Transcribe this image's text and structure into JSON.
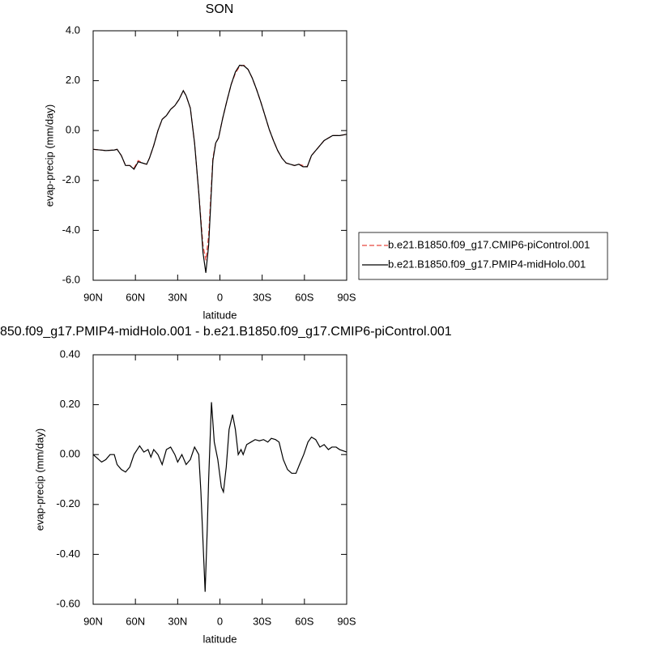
{
  "chart_data": [
    {
      "type": "line",
      "title": "SON",
      "xlabel": "latitude",
      "ylabel": "evap-precip (mm/day)",
      "x": [
        90,
        81,
        75,
        73,
        70,
        67,
        64,
        61,
        58,
        55,
        52,
        50,
        47,
        44,
        41,
        38,
        35,
        32,
        29,
        26,
        24,
        21,
        18,
        15,
        12,
        10,
        8,
        5,
        3,
        1,
        -2,
        -5,
        -8,
        -11,
        -14,
        -17,
        -20,
        -23,
        -26,
        -29,
        -32,
        -35,
        -38,
        -41,
        -44,
        -47,
        -50,
        -53,
        -56,
        -59,
        -62,
        -65,
        -68,
        -74,
        -80,
        -85,
        -90
      ],
      "series": [
        {
          "name": "b.e21.B1850.f09_g17.CMIP6-piControl.001",
          "color": "#e8473f",
          "linestyle": "dashed",
          "values": [
            -0.75,
            -0.8,
            -0.78,
            -0.75,
            -1.0,
            -1.4,
            -1.4,
            -1.5,
            -1.2,
            -1.3,
            -1.35,
            -1.1,
            -0.6,
            0.0,
            0.45,
            0.6,
            0.85,
            1.0,
            1.25,
            1.6,
            1.4,
            0.9,
            -0.5,
            -2.5,
            -4.6,
            -5.2,
            -4.2,
            -1.1,
            -0.5,
            -0.3,
            0.5,
            1.2,
            1.85,
            2.3,
            2.58,
            2.62,
            2.45,
            2.1,
            1.65,
            1.15,
            0.6,
            0.05,
            -0.4,
            -0.8,
            -1.1,
            -1.3,
            -1.35,
            -1.4,
            -1.35,
            -1.4,
            -1.45,
            -1.0,
            -0.8,
            -0.4,
            -0.2,
            -0.2,
            -0.15
          ]
        },
        {
          "name": "b.e21.B1850.f09_g17.PMIP4-midHolo.001",
          "color": "#000000",
          "linestyle": "solid",
          "values": [
            -0.75,
            -0.8,
            -0.78,
            -0.75,
            -1.0,
            -1.4,
            -1.4,
            -1.55,
            -1.25,
            -1.3,
            -1.35,
            -1.1,
            -0.6,
            0.0,
            0.45,
            0.6,
            0.85,
            1.0,
            1.25,
            1.6,
            1.4,
            0.9,
            -0.5,
            -2.5,
            -4.9,
            -5.7,
            -4.6,
            -1.2,
            -0.5,
            -0.3,
            0.5,
            1.2,
            1.85,
            2.35,
            2.62,
            2.6,
            2.45,
            2.1,
            1.65,
            1.15,
            0.6,
            0.05,
            -0.4,
            -0.8,
            -1.1,
            -1.3,
            -1.35,
            -1.4,
            -1.35,
            -1.45,
            -1.45,
            -1.0,
            -0.8,
            -0.4,
            -0.2,
            -0.2,
            -0.15
          ]
        }
      ],
      "xlim": [
        90,
        -90
      ],
      "xticks": [
        {
          "value": 90,
          "label": "90N"
        },
        {
          "value": 60,
          "label": "60N"
        },
        {
          "value": 30,
          "label": "30N"
        },
        0,
        {
          "value": -30,
          "label": "30S"
        },
        {
          "value": -60,
          "label": "60S"
        },
        {
          "value": -90,
          "label": "90S"
        }
      ],
      "ylim": [
        -6,
        4
      ],
      "yticks": [
        {
          "value": -6,
          "label": "-6.0"
        },
        {
          "value": -4,
          "label": "-4.0"
        },
        {
          "value": -2,
          "label": "-2.0"
        },
        {
          "value": 0,
          "label": "0.0"
        },
        {
          "value": 2,
          "label": "2.0"
        },
        {
          "value": 4,
          "label": "4.0"
        }
      ],
      "legend": "right"
    },
    {
      "type": "line",
      "title": "850.f09_g17.PMIP4-midHolo.001 - b.e21.B1850.f09_g17.CMIP6-piControl.001",
      "xlabel": "latitude",
      "ylabel": "evap-precip (mm/day)",
      "x": [
        90,
        84,
        81,
        78,
        75,
        73,
        70,
        67,
        64,
        61,
        57,
        54,
        51,
        49,
        47,
        44,
        41,
        38,
        35,
        32,
        30,
        27,
        24,
        21,
        18,
        15,
        13.5,
        12,
        10.5,
        9,
        8,
        6,
        4,
        1.5,
        -1,
        -2.5,
        -4.5,
        -6.5,
        -9,
        -11,
        -13,
        -15,
        -16.5,
        -19,
        -22,
        -25,
        -28,
        -31,
        -34,
        -36.5,
        -39.5,
        -42,
        -45,
        -48,
        -51,
        -54,
        -56.5,
        -59.5,
        -62.5,
        -65,
        -68,
        -71,
        -74,
        -77,
        -79.5,
        -82.5,
        -85,
        -90
      ],
      "series": [
        {
          "color": "#000000",
          "linestyle": "solid",
          "values": [
            0.0,
            -0.03,
            -0.02,
            0.0,
            0.0,
            -0.04,
            -0.06,
            -0.07,
            -0.05,
            0.0,
            0.035,
            0.01,
            0.02,
            -0.01,
            0.02,
            0.0,
            -0.04,
            0.02,
            0.03,
            0.0,
            -0.03,
            0.0,
            -0.04,
            -0.02,
            0.03,
            0.0,
            -0.15,
            -0.35,
            -0.55,
            -0.3,
            -0.1,
            0.21,
            0.05,
            -0.02,
            -0.13,
            -0.15,
            -0.05,
            0.1,
            0.16,
            0.1,
            0.0,
            0.02,
            0.0,
            0.04,
            0.05,
            0.06,
            0.055,
            0.06,
            0.05,
            0.065,
            0.06,
            0.05,
            -0.02,
            -0.06,
            -0.075,
            -0.075,
            -0.04,
            0.0,
            0.05,
            0.07,
            0.06,
            0.03,
            0.04,
            0.02,
            0.03,
            0.03,
            0.02,
            0.01
          ]
        }
      ],
      "xlim": [
        90,
        -90
      ],
      "xticks": [
        {
          "value": 90,
          "label": "90N"
        },
        {
          "value": 60,
          "label": "60N"
        },
        {
          "value": 30,
          "label": "30N"
        },
        0,
        {
          "value": -30,
          "label": "30S"
        },
        {
          "value": -60,
          "label": "60S"
        },
        {
          "value": -90,
          "label": "90S"
        }
      ],
      "ylim": [
        -0.6,
        0.4
      ],
      "yticks": [
        {
          "value": -0.6,
          "label": "-0.60"
        },
        {
          "value": -0.4,
          "label": "-0.40"
        },
        {
          "value": -0.2,
          "label": "-0.20"
        },
        {
          "value": 0,
          "label": "0.00"
        },
        {
          "value": 0.2,
          "label": "0.20"
        },
        {
          "value": 0.4,
          "label": "0.40"
        }
      ]
    }
  ]
}
